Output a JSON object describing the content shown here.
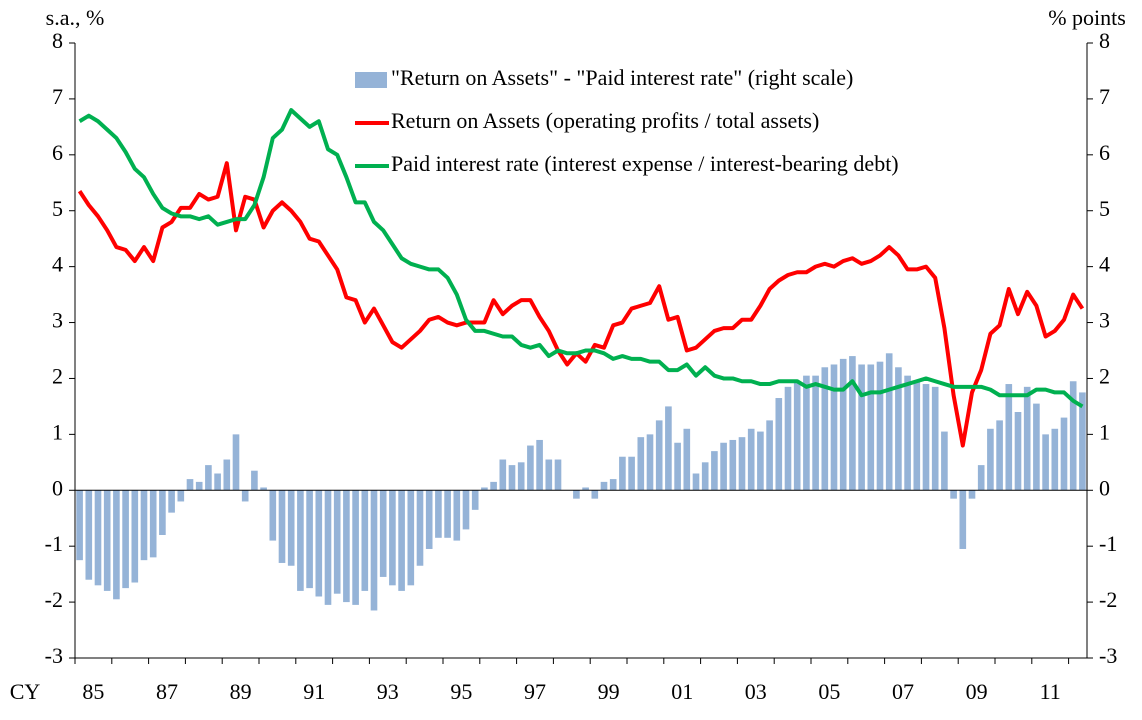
{
  "chart_data": {
    "type": "bar-line",
    "ylabel": "s.a., %",
    "y2label": "% points",
    "xlabel": "CY",
    "ylim": [
      -3,
      8
    ],
    "yticks": [
      -3,
      -2,
      -1,
      0,
      1,
      2,
      3,
      4,
      5,
      6,
      7,
      8
    ],
    "y2lim": [
      -3,
      8
    ],
    "y2ticks": [
      -3,
      -2,
      -1,
      0,
      1,
      2,
      3,
      4,
      5,
      6,
      7,
      8
    ],
    "legend": "top",
    "categories": [
      "85",
      null,
      null,
      null,
      null,
      null,
      null,
      null,
      "87",
      null,
      null,
      null,
      null,
      null,
      null,
      null,
      "89",
      null,
      null,
      null,
      null,
      null,
      null,
      null,
      "91",
      null,
      null,
      null,
      null,
      null,
      null,
      null,
      "93",
      null,
      null,
      null,
      null,
      null,
      null,
      null,
      "95",
      null,
      null,
      null,
      null,
      null,
      null,
      null,
      "97",
      null,
      null,
      null,
      null,
      null,
      null,
      null,
      "99",
      null,
      null,
      null,
      null,
      null,
      null,
      null,
      "01",
      null,
      null,
      null,
      null,
      null,
      null,
      null,
      "03",
      null,
      null,
      null,
      null,
      null,
      null,
      null,
      "05",
      null,
      null,
      null,
      null,
      null,
      null,
      null,
      "07",
      null,
      null,
      null,
      null,
      null,
      null,
      null,
      "09",
      null,
      null,
      null,
      null,
      null,
      null,
      null,
      "11",
      null,
      null,
      null,
      null,
      null
    ],
    "series": [
      {
        "name": "\"Return on Assets\" - \"Paid interest rate\" (right scale)",
        "type": "bar",
        "axis": "y2",
        "color": "#95b3d7",
        "values": [
          -1.25,
          -1.6,
          -1.7,
          -1.8,
          -1.95,
          -1.75,
          -1.65,
          -1.25,
          -1.2,
          -0.8,
          -0.4,
          -0.2,
          0.2,
          0.15,
          0.45,
          0.3,
          0.55,
          1.0,
          -0.2,
          0.35,
          0.05,
          -0.9,
          -1.3,
          -1.35,
          -1.8,
          -1.75,
          -1.9,
          -2.05,
          -1.85,
          -2.0,
          -2.05,
          -1.8,
          -2.15,
          -1.55,
          -1.7,
          -1.8,
          -1.7,
          -1.35,
          -1.05,
          -0.85,
          -0.85,
          -0.9,
          -0.7,
          -0.35,
          0.05,
          0.15,
          0.55,
          0.45,
          0.5,
          0.8,
          0.9,
          0.55,
          0.55,
          0.0,
          -0.15,
          0.05,
          -0.15,
          0.15,
          0.2,
          0.6,
          0.6,
          0.95,
          1.0,
          1.25,
          1.5,
          0.85,
          1.1,
          0.3,
          0.5,
          0.7,
          0.85,
          0.9,
          0.95,
          1.1,
          1.05,
          1.25,
          1.65,
          1.85,
          1.95,
          2.05,
          2.05,
          2.2,
          2.25,
          2.35,
          2.4,
          2.25,
          2.25,
          2.3,
          2.45,
          2.2,
          2.05,
          1.95,
          1.9,
          1.85,
          1.05,
          -0.15,
          -1.05,
          -0.15,
          0.45,
          1.1,
          1.25,
          1.9,
          1.4,
          1.85,
          1.55,
          1.0,
          1.1,
          1.3,
          1.95,
          1.75
        ]
      },
      {
        "name": "Return on Assets (operating profits / total assets)",
        "type": "line",
        "color": "#ff0000",
        "values": [
          5.35,
          5.1,
          4.9,
          4.65,
          4.35,
          4.3,
          4.1,
          4.35,
          4.1,
          4.7,
          4.8,
          5.05,
          5.05,
          5.3,
          5.2,
          5.25,
          5.85,
          4.65,
          5.25,
          5.2,
          4.7,
          5.0,
          5.15,
          5.0,
          4.8,
          4.5,
          4.45,
          4.2,
          3.95,
          3.45,
          3.4,
          3.0,
          3.25,
          2.95,
          2.65,
          2.55,
          2.7,
          2.85,
          3.05,
          3.1,
          3.0,
          2.95,
          3.0,
          3.0,
          3.0,
          3.4,
          3.15,
          3.3,
          3.4,
          3.4,
          3.1,
          2.85,
          2.5,
          2.25,
          2.45,
          2.3,
          2.6,
          2.55,
          2.95,
          3.0,
          3.25,
          3.3,
          3.35,
          3.65,
          3.05,
          3.1,
          2.5,
          2.55,
          2.7,
          2.85,
          2.9,
          2.9,
          3.05,
          3.05,
          3.3,
          3.6,
          3.75,
          3.85,
          3.9,
          3.9,
          4.0,
          4.05,
          4.0,
          4.1,
          4.15,
          4.05,
          4.1,
          4.2,
          4.35,
          4.2,
          3.95,
          3.95,
          4.0,
          3.8,
          2.9,
          1.7,
          0.8,
          1.75,
          2.15,
          2.8,
          2.95,
          3.6,
          3.15,
          3.55,
          3.3,
          2.75,
          2.85,
          3.05,
          3.5,
          3.25
        ]
      },
      {
        "name": "Paid interest rate (interest expense / interest-bearing debt)",
        "type": "line",
        "color": "#00b050",
        "values": [
          6.6,
          6.7,
          6.6,
          6.45,
          6.3,
          6.05,
          5.75,
          5.6,
          5.3,
          5.05,
          4.95,
          4.9,
          4.9,
          4.85,
          4.9,
          4.75,
          4.8,
          4.85,
          4.85,
          5.1,
          5.6,
          6.3,
          6.45,
          6.8,
          6.65,
          6.5,
          6.6,
          6.1,
          6.0,
          5.6,
          5.15,
          5.15,
          4.8,
          4.65,
          4.4,
          4.15,
          4.05,
          4.0,
          3.95,
          3.95,
          3.8,
          3.5,
          3.05,
          2.85,
          2.85,
          2.8,
          2.75,
          2.75,
          2.6,
          2.55,
          2.6,
          2.4,
          2.5,
          2.45,
          2.45,
          2.5,
          2.5,
          2.45,
          2.35,
          2.4,
          2.35,
          2.35,
          2.3,
          2.3,
          2.15,
          2.15,
          2.25,
          2.05,
          2.2,
          2.05,
          2.0,
          2.0,
          1.95,
          1.95,
          1.9,
          1.9,
          1.95,
          1.95,
          1.95,
          1.85,
          1.9,
          1.85,
          1.8,
          1.8,
          1.95,
          1.7,
          1.75,
          1.75,
          1.8,
          1.85,
          1.9,
          1.95,
          2.0,
          1.95,
          1.9,
          1.85,
          1.85,
          1.85,
          1.85,
          1.8,
          1.7,
          1.7,
          1.7,
          1.7,
          1.8,
          1.8,
          1.75,
          1.75,
          1.6,
          1.5
        ]
      }
    ]
  }
}
